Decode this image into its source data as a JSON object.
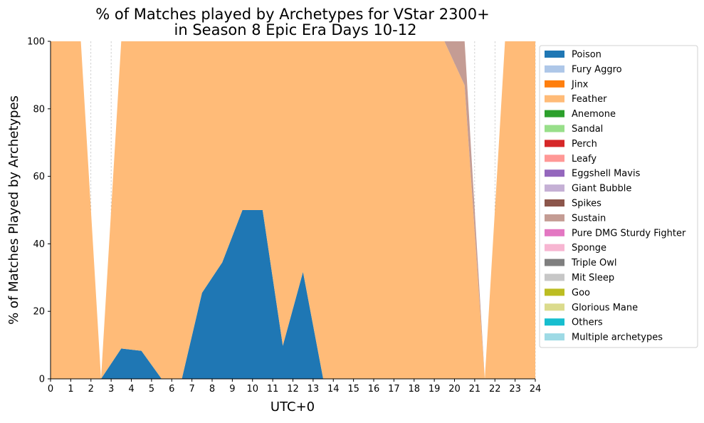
{
  "chart_data": {
    "type": "area",
    "stacked": true,
    "title": "% of Matches played by Archetypes for VStar 2300+",
    "subtitle": "in Season 8 Epic Era Days 10-12",
    "xlabel": "UTC+0",
    "ylabel": "% of Matches Played by Archetypes",
    "xlim": [
      0,
      24
    ],
    "ylim": [
      0,
      100
    ],
    "x_ticks": [
      "0",
      "1",
      "2",
      "3",
      "4",
      "5",
      "6",
      "7",
      "8",
      "9",
      "10",
      "11",
      "12",
      "13",
      "14",
      "15",
      "16",
      "17",
      "18",
      "19",
      "20",
      "21",
      "22",
      "23",
      "24"
    ],
    "y_ticks": [
      "0",
      "20",
      "40",
      "60",
      "80",
      "100"
    ],
    "grid": "vertical-dashed",
    "legend_position": "right-outside",
    "x": [
      0,
      0.5,
      1,
      1.5,
      2.5,
      3.5,
      4.5,
      5.5,
      6.5,
      7.5,
      8.5,
      9.5,
      10.5,
      11.5,
      12.5,
      13.5,
      14.5,
      15.5,
      16.5,
      17.5,
      18.5,
      19.5,
      20.5,
      21.5,
      22.5,
      23.5,
      24
    ],
    "series": [
      {
        "name": "Poison",
        "color": "#1f77b4",
        "values": [
          0,
          0,
          0,
          0,
          0,
          9,
          8.3,
          0,
          0,
          25.5,
          34.5,
          50,
          50,
          9.8,
          31.7,
          0,
          0,
          0,
          0,
          0,
          0,
          0,
          0,
          0,
          0,
          0,
          0
        ]
      },
      {
        "name": "Fury Aggro",
        "color": "#aec7e8",
        "values": [
          0,
          0,
          0,
          0,
          0,
          0,
          0,
          0,
          0,
          0,
          0,
          0,
          0,
          0,
          0,
          0,
          0,
          0,
          0,
          0,
          0,
          0,
          0,
          0,
          0,
          0,
          0
        ]
      },
      {
        "name": "Jinx",
        "color": "#ff7f0e",
        "values": [
          0,
          0,
          0,
          0,
          0,
          0,
          0,
          0,
          0,
          0,
          0,
          0,
          0,
          0,
          0,
          0,
          0,
          0,
          0,
          0,
          0,
          0,
          0,
          0,
          0,
          0,
          0
        ]
      },
      {
        "name": "Feather",
        "color": "#ffbb78",
        "values": [
          100,
          100,
          100,
          100,
          0,
          91,
          91.7,
          100,
          100,
          74.5,
          65.5,
          50,
          50,
          90.2,
          68.3,
          100,
          100,
          100,
          100,
          100,
          100,
          100,
          87,
          0,
          100,
          100,
          100
        ]
      },
      {
        "name": "Anemone",
        "color": "#2ca02c",
        "values": [
          0,
          0,
          0,
          0,
          0,
          0,
          0,
          0,
          0,
          0,
          0,
          0,
          0,
          0,
          0,
          0,
          0,
          0,
          0,
          0,
          0,
          0,
          0,
          0,
          0,
          0,
          0
        ]
      },
      {
        "name": "Sandal",
        "color": "#98df8a",
        "values": [
          0,
          0,
          0,
          0,
          0,
          0,
          0,
          0,
          0,
          0,
          0,
          0,
          0,
          0,
          0,
          0,
          0,
          0,
          0,
          0,
          0,
          0,
          0,
          0,
          0,
          0,
          0
        ]
      },
      {
        "name": "Perch",
        "color": "#d62728",
        "values": [
          0,
          0,
          0,
          0,
          0,
          0,
          0,
          0,
          0,
          0,
          0,
          0,
          0,
          0,
          0,
          0,
          0,
          0,
          0,
          0,
          0,
          0,
          0,
          0,
          0,
          0,
          0
        ]
      },
      {
        "name": "Leafy",
        "color": "#ff9896",
        "values": [
          0,
          0,
          0,
          0,
          0,
          0,
          0,
          0,
          0,
          0,
          0,
          0,
          0,
          0,
          0,
          0,
          0,
          0,
          0,
          0,
          0,
          0,
          0,
          0,
          0,
          0,
          0
        ]
      },
      {
        "name": "Eggshell Mavis",
        "color": "#9467bd",
        "values": [
          0,
          0,
          0,
          0,
          0,
          0,
          0,
          0,
          0,
          0,
          0,
          0,
          0,
          0,
          0,
          0,
          0,
          0,
          0,
          0,
          0,
          0,
          0,
          0,
          0,
          0,
          0
        ]
      },
      {
        "name": "Giant Bubble",
        "color": "#c5b0d5",
        "values": [
          0,
          0,
          0,
          0,
          0,
          0,
          0,
          0,
          0,
          0,
          0,
          0,
          0,
          0,
          0,
          0,
          0,
          0,
          0,
          0,
          0,
          0,
          0,
          0,
          0,
          0,
          0
        ]
      },
      {
        "name": "Spikes",
        "color": "#8c564b",
        "values": [
          0,
          0,
          0,
          0,
          0,
          0,
          0,
          0,
          0,
          0,
          0,
          0,
          0,
          0,
          0,
          0,
          0,
          0,
          0,
          0,
          0,
          0,
          0,
          0,
          0,
          0,
          0
        ]
      },
      {
        "name": "Sustain",
        "color": "#c49c94",
        "values": [
          0,
          0,
          0,
          0,
          0,
          0,
          0,
          0,
          0,
          0,
          0,
          0,
          0,
          0,
          0,
          0,
          0,
          0,
          0,
          0,
          0,
          0,
          13,
          0,
          0,
          0,
          0
        ]
      },
      {
        "name": "Pure DMG Sturdy Fighter",
        "color": "#e377c2",
        "values": [
          0,
          0,
          0,
          0,
          0,
          0,
          0,
          0,
          0,
          0,
          0,
          0,
          0,
          0,
          0,
          0,
          0,
          0,
          0,
          0,
          0,
          0,
          0,
          0,
          0,
          0,
          0
        ]
      },
      {
        "name": "Sponge",
        "color": "#f7b6d2",
        "values": [
          0,
          0,
          0,
          0,
          0,
          0,
          0,
          0,
          0,
          0,
          0,
          0,
          0,
          0,
          0,
          0,
          0,
          0,
          0,
          0,
          0,
          0,
          0,
          0,
          0,
          0,
          0
        ]
      },
      {
        "name": "Triple Owl",
        "color": "#7f7f7f",
        "values": [
          0,
          0,
          0,
          0,
          0,
          0,
          0,
          0,
          0,
          0,
          0,
          0,
          0,
          0,
          0,
          0,
          0,
          0,
          0,
          0,
          0,
          0,
          0,
          0,
          0,
          0,
          0
        ]
      },
      {
        "name": "Mit Sleep",
        "color": "#c7c7c7",
        "values": [
          0,
          0,
          0,
          0,
          0,
          0,
          0,
          0,
          0,
          0,
          0,
          0,
          0,
          0,
          0,
          0,
          0,
          0,
          0,
          0,
          0,
          0,
          0,
          0,
          0,
          0,
          0
        ]
      },
      {
        "name": "Goo",
        "color": "#bcbd22",
        "values": [
          0,
          0,
          0,
          0,
          0,
          0,
          0,
          0,
          0,
          0,
          0,
          0,
          0,
          0,
          0,
          0,
          0,
          0,
          0,
          0,
          0,
          0,
          0,
          0,
          0,
          0,
          0
        ]
      },
      {
        "name": "Glorious Mane",
        "color": "#dbdb8d",
        "values": [
          0,
          0,
          0,
          0,
          0,
          0,
          0,
          0,
          0,
          0,
          0,
          0,
          0,
          0,
          0,
          0,
          0,
          0,
          0,
          0,
          0,
          0,
          0,
          0,
          0,
          0,
          0
        ]
      },
      {
        "name": "Others",
        "color": "#17becf",
        "values": [
          0,
          0,
          0,
          0,
          0,
          0,
          0,
          0,
          0,
          0,
          0,
          0,
          0,
          0,
          0,
          0,
          0,
          0,
          0,
          0,
          0,
          0,
          0,
          0,
          0,
          0,
          0
        ]
      },
      {
        "name": "Multiple archetypes",
        "color": "#9edae5",
        "values": [
          0,
          0,
          0,
          0,
          0,
          0,
          0,
          0,
          0,
          0,
          0,
          0,
          0,
          0,
          0,
          0,
          0,
          0,
          0,
          0,
          0,
          0,
          0,
          0,
          0,
          0,
          0
        ]
      }
    ]
  }
}
